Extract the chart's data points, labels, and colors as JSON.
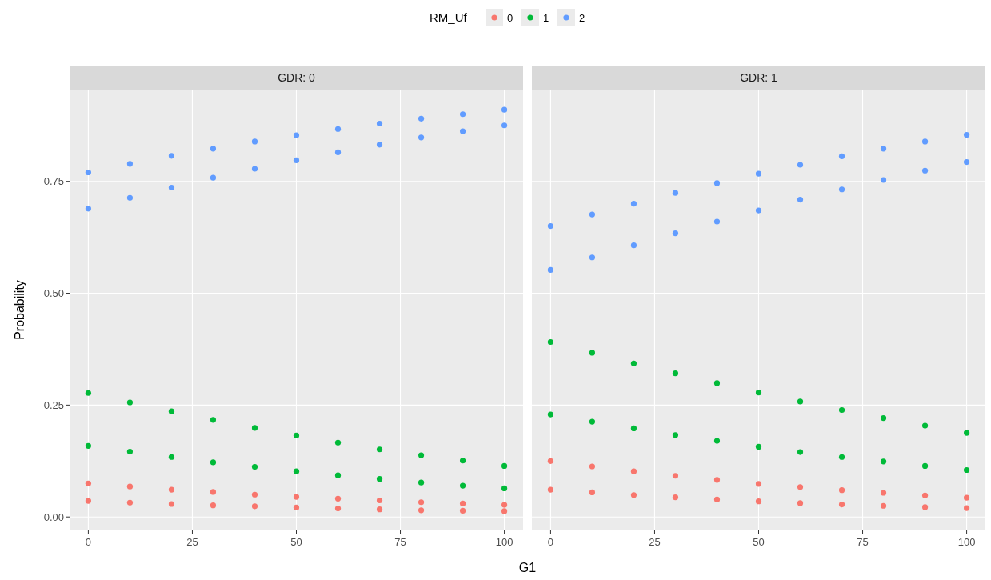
{
  "chart_data": [
    {
      "type": "scatter",
      "title": "GDR: 0",
      "xlabel": "G1",
      "ylabel": "Probability",
      "legend_title": "RM_Uf",
      "legend": "top",
      "grid": true,
      "marker": "circle",
      "x": [
        0,
        10,
        20,
        30,
        40,
        50,
        60,
        70,
        80,
        90,
        100
      ],
      "xlim": [
        -4.5,
        104.5
      ],
      "xticks": [
        0,
        25,
        50,
        75,
        100
      ],
      "ylim": [
        -0.03,
        0.955
      ],
      "yticks": [
        {
          "value": 0,
          "label": "0.00"
        },
        {
          "value": 0.25,
          "label": "0.25"
        },
        {
          "value": 0.5,
          "label": "0.50"
        },
        {
          "value": 0.75,
          "label": "0.75"
        }
      ],
      "series": [
        {
          "name": "0",
          "color": "#f8766d",
          "values": [
            0.075,
            0.068,
            0.061,
            0.056,
            0.05,
            0.045,
            0.041,
            0.037,
            0.033,
            0.03,
            0.027
          ]
        },
        {
          "color": "#f8766d",
          "values": [
            0.036,
            0.032,
            0.029,
            0.026,
            0.024,
            0.021,
            0.019,
            0.017,
            0.015,
            0.014,
            0.013
          ]
        },
        {
          "name": "1",
          "color": "#00ba38",
          "values": [
            0.277,
            0.256,
            0.236,
            0.217,
            0.199,
            0.182,
            0.166,
            0.151,
            0.138,
            0.126,
            0.114
          ]
        },
        {
          "color": "#00ba38",
          "values": [
            0.159,
            0.146,
            0.134,
            0.122,
            0.112,
            0.102,
            0.093,
            0.085,
            0.077,
            0.07,
            0.064
          ]
        },
        {
          "name": "2",
          "color": "#619cff",
          "values": [
            0.77,
            0.789,
            0.807,
            0.823,
            0.839,
            0.853,
            0.867,
            0.879,
            0.89,
            0.9,
            0.91
          ]
        },
        {
          "color": "#619cff",
          "values": [
            0.689,
            0.713,
            0.736,
            0.758,
            0.778,
            0.797,
            0.815,
            0.832,
            0.848,
            0.862,
            0.875
          ]
        }
      ]
    },
    {
      "type": "scatter",
      "title": "GDR: 1",
      "grid": true,
      "marker": "circle",
      "tick_labels": "x",
      "x": [
        0,
        10,
        20,
        30,
        40,
        50,
        60,
        70,
        80,
        90,
        100
      ],
      "xlim": [
        -4.5,
        104.5
      ],
      "xticks": [
        0,
        25,
        50,
        75,
        100
      ],
      "ylim": [
        -0.03,
        0.955
      ],
      "yticks": [
        0,
        0.25,
        0.5,
        0.75
      ],
      "series": [
        {
          "color": "#f8766d",
          "values": [
            0.125,
            0.113,
            0.102,
            0.092,
            0.083,
            0.074,
            0.067,
            0.06,
            0.054,
            0.048,
            0.043
          ]
        },
        {
          "color": "#f8766d",
          "values": [
            0.061,
            0.055,
            0.049,
            0.044,
            0.039,
            0.035,
            0.031,
            0.028,
            0.025,
            0.022,
            0.02
          ]
        },
        {
          "color": "#00ba38",
          "values": [
            0.391,
            0.367,
            0.343,
            0.321,
            0.299,
            0.278,
            0.258,
            0.239,
            0.221,
            0.204,
            0.188
          ]
        },
        {
          "color": "#00ba38",
          "values": [
            0.229,
            0.213,
            0.198,
            0.183,
            0.17,
            0.157,
            0.145,
            0.134,
            0.124,
            0.114,
            0.105
          ]
        },
        {
          "color": "#619cff",
          "values": [
            0.65,
            0.676,
            0.7,
            0.724,
            0.746,
            0.767,
            0.787,
            0.806,
            0.823,
            0.839,
            0.854
          ]
        },
        {
          "color": "#619cff",
          "values": [
            0.552,
            0.58,
            0.607,
            0.634,
            0.66,
            0.685,
            0.709,
            0.732,
            0.753,
            0.774,
            0.793
          ]
        }
      ]
    }
  ]
}
